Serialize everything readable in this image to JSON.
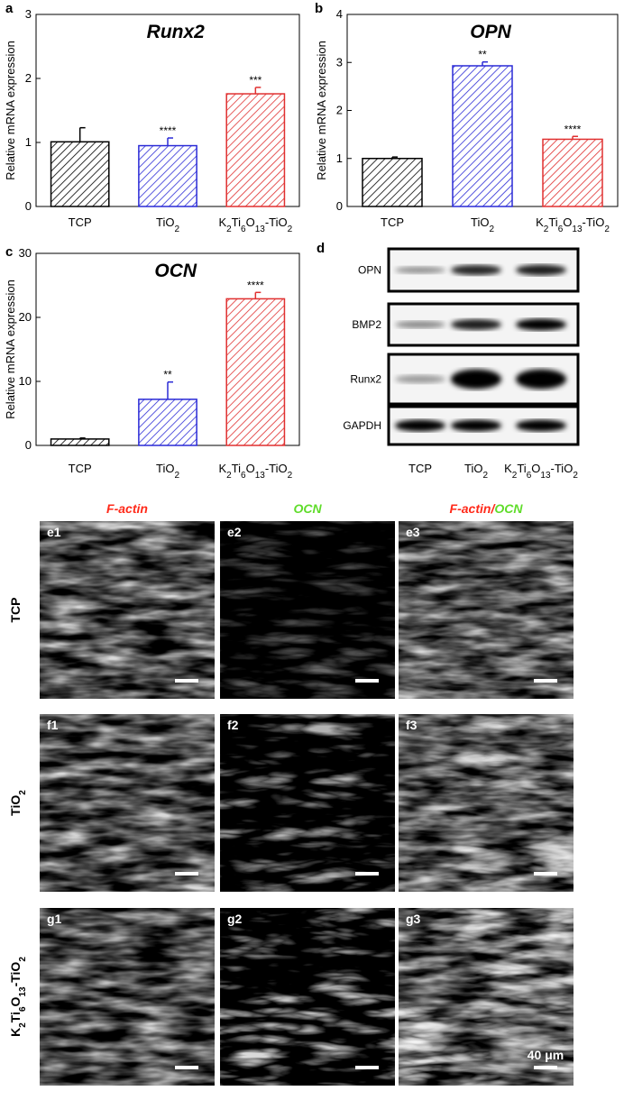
{
  "chart_data": [
    {
      "id": "a",
      "type": "bar",
      "title": "Runx2",
      "ylabel": "Relative mRNA expression",
      "ylim": [
        0,
        3
      ],
      "yticks": [
        0,
        1,
        2,
        3
      ],
      "categories": [
        "TCP",
        "TiO",
        "K",
        "Ti",
        "O",
        "-TiO"
      ],
      "bars": [
        {
          "label": "TCP",
          "value": 1.01,
          "error": 0.22,
          "sig": "",
          "color": "#000000"
        },
        {
          "label": "TiO2",
          "value": 0.95,
          "error": 0.12,
          "sig": "****",
          "color": "#2a2ad6"
        },
        {
          "label": "K2Ti6O13-TiO2",
          "value": 1.76,
          "error": 0.1,
          "sig": "***",
          "color": "#e03030"
        }
      ]
    },
    {
      "id": "b",
      "type": "bar",
      "title": "OPN",
      "ylabel": "Relative mRNA expression",
      "ylim": [
        0,
        4
      ],
      "yticks": [
        0,
        1,
        2,
        3,
        4
      ],
      "bars": [
        {
          "label": "TCP",
          "value": 1.0,
          "error": 0.03,
          "sig": "",
          "color": "#000000"
        },
        {
          "label": "TiO2",
          "value": 2.93,
          "error": 0.08,
          "sig": "**",
          "color": "#2a2ad6"
        },
        {
          "label": "K2Ti6O13-TiO2",
          "value": 1.4,
          "error": 0.06,
          "sig": "****",
          "color": "#e03030"
        }
      ]
    },
    {
      "id": "c",
      "type": "bar",
      "title": "OCN",
      "ylabel": "Relative mRNA expression",
      "ylim": [
        0,
        30
      ],
      "yticks": [
        0,
        10,
        20,
        30
      ],
      "bars": [
        {
          "label": "TCP",
          "value": 1.0,
          "error": 0.15,
          "sig": "",
          "color": "#000000"
        },
        {
          "label": "TiO2",
          "value": 7.2,
          "error": 2.7,
          "sig": "**",
          "color": "#2a2ad6"
        },
        {
          "label": "K2Ti6O13-TiO2",
          "value": 22.9,
          "error": 1.0,
          "sig": "****",
          "color": "#e03030"
        }
      ]
    }
  ],
  "labels": {
    "panels": {
      "a": "a",
      "b": "b",
      "c": "c",
      "d": "d"
    },
    "cat_tcp": "TCP",
    "tio": "TiO",
    "sub2": "2",
    "k": "K",
    "ti": "Ti",
    "o": "O",
    "sub6": "6",
    "sub13": "13",
    "dash_tio": "-TiO"
  },
  "western_blot": {
    "proteins": [
      "OPN",
      "BMP2",
      "Runx2",
      "GAPDH"
    ],
    "columns": [
      "TCP",
      "TiO2",
      "K2Ti6O13-TiO2"
    ],
    "intensities": [
      [
        0.25,
        0.8,
        0.85
      ],
      [
        0.3,
        0.85,
        1.0
      ],
      [
        0.2,
        1.0,
        1.0
      ],
      [
        1.0,
        1.0,
        1.0
      ]
    ]
  },
  "microscopy": {
    "col_titles": {
      "factin": "F-actin",
      "ocn": "OCN",
      "slash": "/"
    },
    "rows": [
      {
        "label_main": "TCP",
        "labels": [
          "e1",
          "e2",
          "e3"
        ],
        "green": 0.25,
        "red": 1.0
      },
      {
        "label_main": "TiO",
        "labels": [
          "f1",
          "f2",
          "f3"
        ],
        "green": 0.75,
        "red": 1.0
      },
      {
        "label_main": "K",
        "labels": [
          "g1",
          "g2",
          "g3"
        ],
        "green": 1.0,
        "red": 1.0
      }
    ],
    "scalebar": "40 μm",
    "colors": {
      "red": "#ff2a1a",
      "green": "#5fdc2a"
    }
  }
}
